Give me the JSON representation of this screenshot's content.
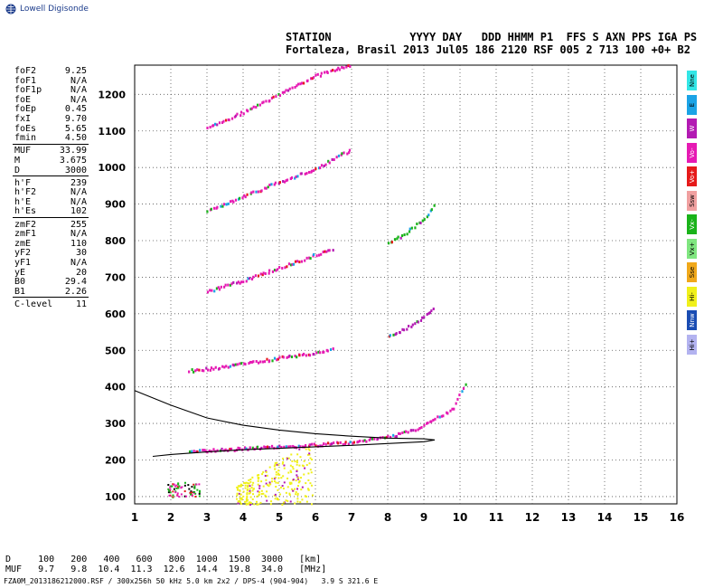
{
  "brand": "Lowell Digisonde",
  "header": {
    "line1": "STATION            YYYY DAY   DDD HHMM P1  FFS S AXN PPS IGA PS",
    "line2": "Fortaleza, Brasil 2013 Jul05 186 2120 RSF 005 2 713 100 +0+ B2"
  },
  "params": {
    "group1": [
      {
        "label": "foF2",
        "value": "9.25"
      },
      {
        "label": "foF1",
        "value": "N/A"
      },
      {
        "label": "foF1p",
        "value": "N/A"
      },
      {
        "label": "foE",
        "value": "N/A"
      },
      {
        "label": "foEp",
        "value": "0.45"
      },
      {
        "label": "fxI",
        "value": "9.70"
      },
      {
        "label": "foEs",
        "value": "5.65"
      },
      {
        "label": "fmin",
        "value": "4.50"
      }
    ],
    "group2": [
      {
        "label": "MUF",
        "value": "33.99"
      },
      {
        "label": "M",
        "value": "3.675"
      },
      {
        "label": "D",
        "value": "3000"
      }
    ],
    "group3": [
      {
        "label": "h'F",
        "value": "239"
      },
      {
        "label": "h'F2",
        "value": "N/A"
      },
      {
        "label": "h'E",
        "value": "N/A"
      },
      {
        "label": "h'Es",
        "value": "102"
      }
    ],
    "group4": [
      {
        "label": "zmF2",
        "value": "255"
      },
      {
        "label": "zmF1",
        "value": "N/A"
      },
      {
        "label": "zmE",
        "value": "110"
      },
      {
        "label": "yF2",
        "value": "30"
      },
      {
        "label": "yF1",
        "value": "N/A"
      },
      {
        "label": "yE",
        "value": "20"
      },
      {
        "label": "B0",
        "value": "29.4"
      },
      {
        "label": "B1",
        "value": "2.26"
      }
    ],
    "group5": [
      {
        "label": "C-level",
        "value": "11"
      }
    ]
  },
  "legend": [
    {
      "label": "Nne",
      "color": "#33e6e6"
    },
    {
      "label": "E",
      "color": "#1aa3e6"
    },
    {
      "label": "W",
      "color": "#b31ab3"
    },
    {
      "label": "Vo-",
      "color": "#e61ab3"
    },
    {
      "label": "Vo+",
      "color": "#e61a1a"
    },
    {
      "label": "Ssw",
      "color": "#f0a0a0"
    },
    {
      "label": "Vx-",
      "color": "#1ab31a"
    },
    {
      "label": "Vx+",
      "color": "#80e680"
    },
    {
      "label": "Sse",
      "color": "#f0a81a"
    },
    {
      "label": "Hi-",
      "color": "#f0f01a"
    },
    {
      "label": "Nnw",
      "color": "#1a4db3"
    },
    {
      "label": "Hi+",
      "color": "#b3b3f0"
    }
  ],
  "mufTable": {
    "row1": "D     100   200   400   600   800  1000  1500  3000   [km]",
    "row2": "MUF   9.7   9.8  10.4  11.3  12.6  14.4  19.8  34.0   [MHz]"
  },
  "footer": "FZA0M_2013186212000.RSF / 300x256h 50 kHz 5.0 km 2x2 / DPS-4 (904-904)   3.9 S 321.6 E",
  "chart_data": {
    "type": "scatter",
    "xlim": [
      1,
      16
    ],
    "ylim": [
      80,
      1280
    ],
    "xticks": [
      1,
      2,
      3,
      4,
      5,
      6,
      7,
      8,
      9,
      10,
      11,
      12,
      13,
      14,
      15,
      16
    ],
    "yticks": [
      100,
      200,
      300,
      400,
      500,
      600,
      700,
      800,
      900,
      1000,
      1100,
      1200
    ],
    "grid": true,
    "traces": [
      {
        "name": "hop1",
        "points": [
          [
            2.5,
            223
          ],
          [
            3,
            225
          ],
          [
            4,
            230
          ],
          [
            5,
            235
          ],
          [
            6,
            240
          ],
          [
            7,
            248
          ],
          [
            8,
            262
          ],
          [
            8.7,
            280
          ],
          [
            9.2,
            305
          ],
          [
            9.8,
            340
          ],
          [
            10.2,
            420
          ]
        ],
        "color": "#e61ab3"
      },
      {
        "name": "hop2",
        "points": [
          [
            2.5,
            443
          ],
          [
            3,
            448
          ],
          [
            4,
            462
          ],
          [
            5,
            478
          ],
          [
            6,
            492
          ],
          [
            6.5,
            505
          ]
        ],
        "color": "#e61ab3"
      },
      {
        "name": "hop3",
        "points": [
          [
            3,
            660
          ],
          [
            4,
            690
          ],
          [
            5,
            725
          ],
          [
            6,
            760
          ],
          [
            6.5,
            778
          ]
        ],
        "color": "#e61ab3"
      },
      {
        "name": "hop4",
        "points": [
          [
            3,
            880
          ],
          [
            4,
            920
          ],
          [
            5,
            960
          ],
          [
            6,
            995
          ],
          [
            7,
            1050
          ]
        ],
        "color": "#e61ab3"
      },
      {
        "name": "hop5",
        "points": [
          [
            3,
            1105
          ],
          [
            4,
            1150
          ],
          [
            5,
            1200
          ],
          [
            6,
            1250
          ],
          [
            7,
            1280
          ]
        ],
        "color": "#e61ab3"
      },
      {
        "name": "hop2b",
        "points": [
          [
            8,
            535
          ],
          [
            8.5,
            560
          ],
          [
            9,
            590
          ],
          [
            9.3,
            620
          ]
        ],
        "color": "#b31ab3"
      },
      {
        "name": "hop3b",
        "points": [
          [
            8,
            790
          ],
          [
            8.5,
            820
          ],
          [
            9,
            860
          ],
          [
            9.3,
            900
          ]
        ],
        "color": "#1ab31a"
      }
    ],
    "profile": [
      [
        1,
        390
      ],
      [
        2,
        350
      ],
      [
        3,
        315
      ],
      [
        4,
        295
      ],
      [
        5,
        282
      ],
      [
        6,
        272
      ],
      [
        7,
        265
      ],
      [
        8,
        260
      ],
      [
        9,
        258
      ],
      [
        9.3,
        255
      ],
      [
        9,
        250
      ],
      [
        8,
        245
      ],
      [
        7,
        240
      ],
      [
        6,
        236
      ],
      [
        5,
        232
      ],
      [
        4,
        228
      ],
      [
        3,
        222
      ],
      [
        2,
        215
      ],
      [
        1.5,
        210
      ]
    ]
  }
}
